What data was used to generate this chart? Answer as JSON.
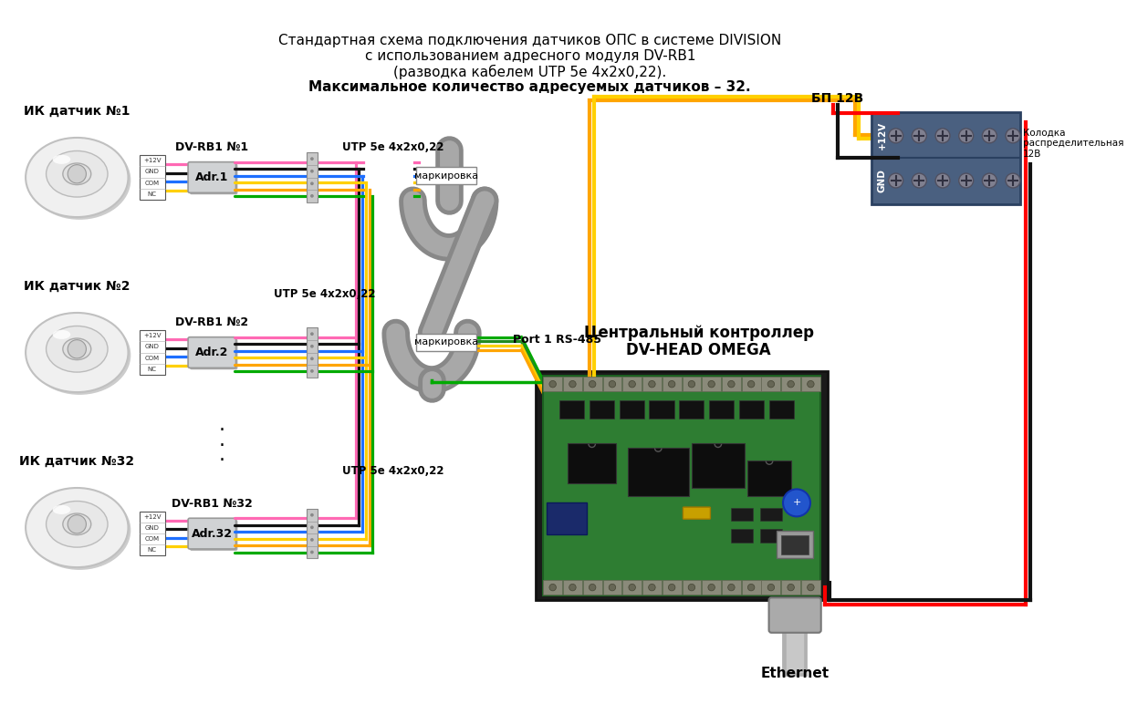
{
  "title_lines": [
    "Стандартная схема подключения датчиков ОПС в системе DIVISION",
    "с использованием адресного модуля DV-RB1",
    "(разводка кабелем UTP 5е 4х2х0,22).",
    "Максимальное количество адресуемых датчиков – 32."
  ],
  "background_color": "#ffffff",
  "sensor_labels": [
    "ИК датчик №1",
    "ИК датчик №2",
    "ИК датчик №32"
  ],
  "module_labels": [
    "DV-RB1 №1",
    "DV-RB1 №2",
    "DV-RB1 №32"
  ],
  "adr_labels": [
    "Adr.1",
    "Adr.2",
    "Adr.32"
  ],
  "wire_labels": [
    "+12V",
    "GND",
    "COM",
    "NC"
  ],
  "utp_label1": "UTP 5е 4х2х0,22",
  "utp_label2": "UTP 5е 4х2х0,22",
  "utp_label3": "UTP 5е 4х2х0,22",
  "marking_label": "маркировка",
  "port_label": "Port 1 RS-485",
  "controller_line1": "Центральный контроллер",
  "controller_line2": "DV-HEAD OMEGA",
  "psu_label": "БП 12В",
  "block_line1": "Колодка",
  "block_line2": "распределительная",
  "block_line3": "12В",
  "ethernet_label": "Ethernet",
  "plus12_label": "+12V",
  "gnd_label": "GND",
  "wire_pink": "#FF69B4",
  "wire_black": "#111111",
  "wire_blue": "#1E6FFF",
  "wire_yellow": "#FFD000",
  "wire_orange": "#FFA500",
  "wire_green": "#00AA00",
  "wire_green2": "#228B22",
  "cable_gray": "#A8A8A8",
  "pcb_green": "#2E7D32",
  "pcb_dark": "#1B5E20",
  "dist_block_color": "#4A6080",
  "dist_block_edge": "#2A4060"
}
